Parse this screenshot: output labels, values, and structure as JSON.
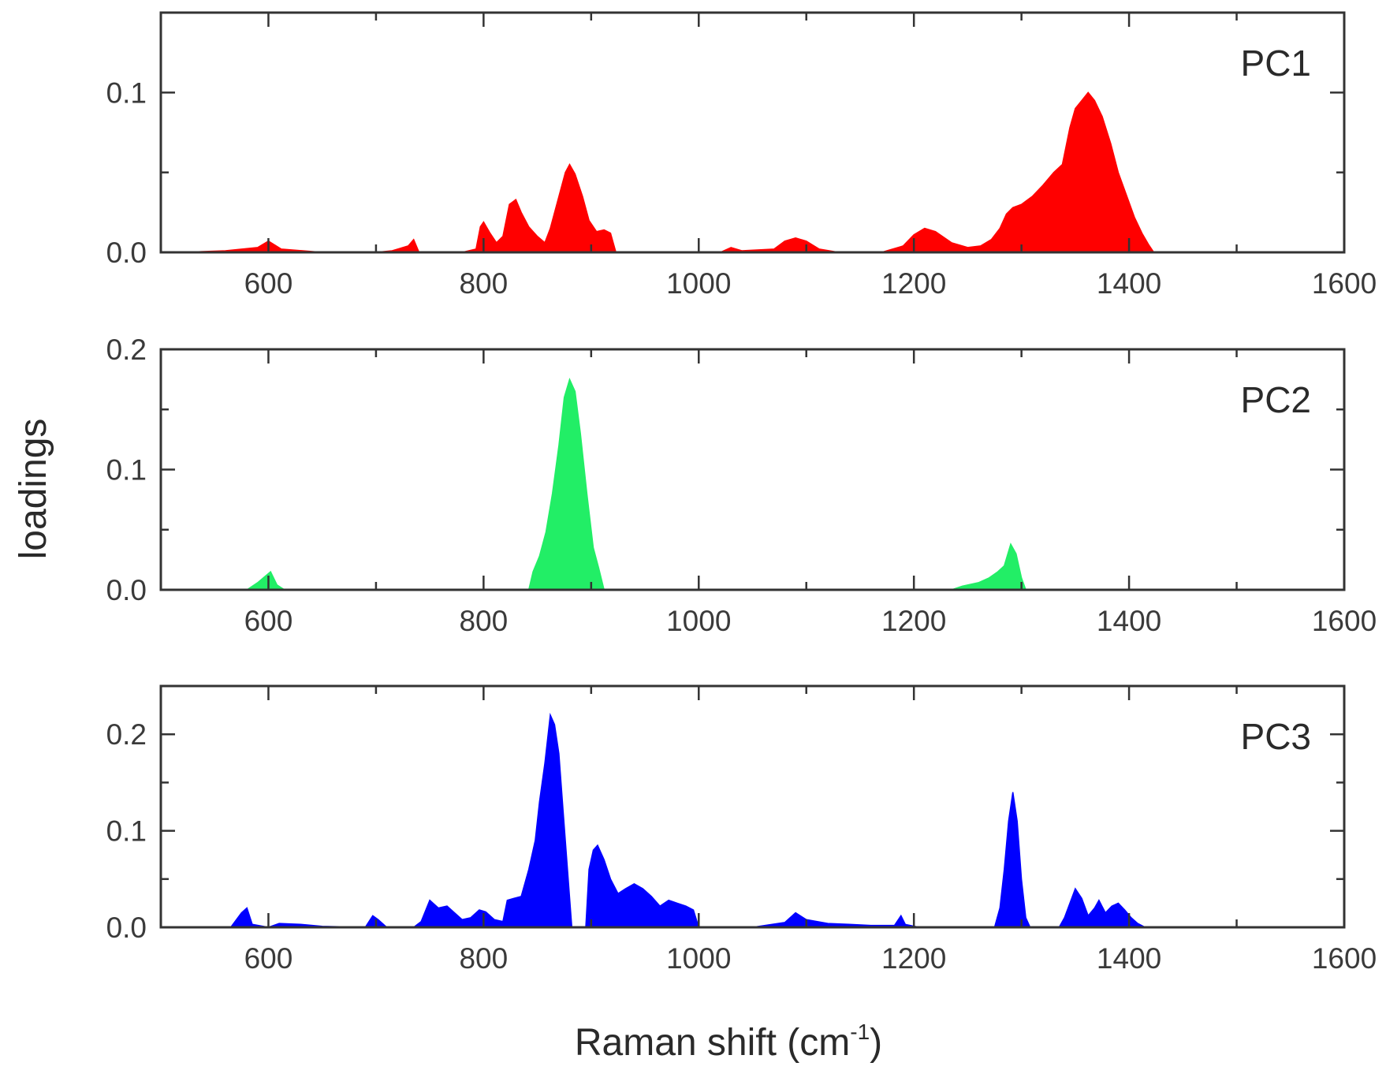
{
  "figure": {
    "ylabel": "loadings",
    "xlabel_main": "Raman shift (cm",
    "xlabel_sup": "-1",
    "xlabel_close": ")"
  },
  "chart_data": [
    {
      "type": "area",
      "panel_label": "PC1",
      "color": "#ff0000",
      "xlim": [
        500,
        1600
      ],
      "ylim": [
        0,
        0.15
      ],
      "x_ticks": [
        600,
        800,
        1000,
        1200,
        1400,
        1600
      ],
      "x_tick_labels": [
        "600",
        "800",
        "1000",
        "1200",
        "1400",
        "1600"
      ],
      "y_ticks": [
        0.0,
        0.1
      ],
      "y_tick_labels": [
        "0.0",
        "0.1"
      ],
      "grid": false,
      "points": [
        [
          520,
          0.0
        ],
        [
          560,
          0.001
        ],
        [
          590,
          0.003
        ],
        [
          600,
          0.007
        ],
        [
          612,
          0.002
        ],
        [
          650,
          0.0
        ],
        [
          700,
          0.0
        ],
        [
          715,
          0.001
        ],
        [
          730,
          0.004
        ],
        [
          735,
          0.008
        ],
        [
          740,
          0.0
        ],
        [
          780,
          0.0
        ],
        [
          793,
          0.002
        ],
        [
          797,
          0.016
        ],
        [
          800,
          0.019
        ],
        [
          806,
          0.012
        ],
        [
          812,
          0.006
        ],
        [
          818,
          0.01
        ],
        [
          824,
          0.03
        ],
        [
          830,
          0.033
        ],
        [
          835,
          0.025
        ],
        [
          842,
          0.016
        ],
        [
          850,
          0.01
        ],
        [
          857,
          0.006
        ],
        [
          862,
          0.015
        ],
        [
          870,
          0.035
        ],
        [
          876,
          0.05
        ],
        [
          880,
          0.055
        ],
        [
          885,
          0.049
        ],
        [
          892,
          0.035
        ],
        [
          898,
          0.02
        ],
        [
          905,
          0.013
        ],
        [
          912,
          0.014
        ],
        [
          918,
          0.012
        ],
        [
          923,
          0.0
        ],
        [
          960,
          0.0
        ],
        [
          1020,
          0.0
        ],
        [
          1030,
          0.003
        ],
        [
          1040,
          0.001
        ],
        [
          1070,
          0.002
        ],
        [
          1080,
          0.007
        ],
        [
          1090,
          0.009
        ],
        [
          1100,
          0.007
        ],
        [
          1112,
          0.002
        ],
        [
          1130,
          0.0
        ],
        [
          1170,
          0.0
        ],
        [
          1190,
          0.004
        ],
        [
          1200,
          0.011
        ],
        [
          1210,
          0.015
        ],
        [
          1220,
          0.013
        ],
        [
          1235,
          0.006
        ],
        [
          1250,
          0.003
        ],
        [
          1262,
          0.004
        ],
        [
          1272,
          0.008
        ],
        [
          1280,
          0.015
        ],
        [
          1286,
          0.024
        ],
        [
          1292,
          0.028
        ],
        [
          1300,
          0.03
        ],
        [
          1310,
          0.035
        ],
        [
          1320,
          0.042
        ],
        [
          1330,
          0.05
        ],
        [
          1338,
          0.055
        ],
        [
          1345,
          0.078
        ],
        [
          1350,
          0.09
        ],
        [
          1356,
          0.095
        ],
        [
          1362,
          0.1
        ],
        [
          1368,
          0.095
        ],
        [
          1375,
          0.085
        ],
        [
          1383,
          0.068
        ],
        [
          1390,
          0.05
        ],
        [
          1398,
          0.035
        ],
        [
          1405,
          0.022
        ],
        [
          1412,
          0.012
        ],
        [
          1418,
          0.005
        ],
        [
          1423,
          0.0
        ],
        [
          1500,
          0.0
        ],
        [
          1560,
          0.0
        ]
      ]
    },
    {
      "type": "area",
      "panel_label": "PC2",
      "color": "#22ee66",
      "xlim": [
        500,
        1600
      ],
      "ylim": [
        0,
        0.2
      ],
      "x_ticks": [
        600,
        800,
        1000,
        1200,
        1400,
        1600
      ],
      "x_tick_labels": [
        "600",
        "800",
        "1000",
        "1200",
        "1400",
        "1600"
      ],
      "y_ticks": [
        0.0,
        0.1,
        0.2
      ],
      "y_tick_labels": [
        "0.0",
        "0.1",
        "0.2"
      ],
      "grid": false,
      "points": [
        [
          520,
          0.0
        ],
        [
          580,
          0.0
        ],
        [
          590,
          0.006
        ],
        [
          598,
          0.012
        ],
        [
          602,
          0.015
        ],
        [
          608,
          0.004
        ],
        [
          615,
          0.0
        ],
        [
          700,
          0.0
        ],
        [
          842,
          0.0
        ],
        [
          846,
          0.015
        ],
        [
          852,
          0.028
        ],
        [
          858,
          0.048
        ],
        [
          864,
          0.08
        ],
        [
          870,
          0.12
        ],
        [
          875,
          0.16
        ],
        [
          880,
          0.175
        ],
        [
          885,
          0.165
        ],
        [
          890,
          0.13
        ],
        [
          896,
          0.08
        ],
        [
          902,
          0.035
        ],
        [
          907,
          0.018
        ],
        [
          912,
          0.0
        ],
        [
          1000,
          0.0
        ],
        [
          1235,
          0.0
        ],
        [
          1245,
          0.003
        ],
        [
          1260,
          0.006
        ],
        [
          1270,
          0.01
        ],
        [
          1278,
          0.015
        ],
        [
          1284,
          0.02
        ],
        [
          1290,
          0.038
        ],
        [
          1295,
          0.03
        ],
        [
          1300,
          0.01
        ],
        [
          1304,
          0.0
        ],
        [
          1400,
          0.0
        ],
        [
          1560,
          0.0
        ]
      ]
    },
    {
      "type": "area",
      "panel_label": "PC3",
      "color": "#0000ff",
      "xlim": [
        500,
        1600
      ],
      "ylim": [
        0,
        0.25
      ],
      "x_ticks": [
        600,
        800,
        1000,
        1200,
        1400,
        1600
      ],
      "x_tick_labels": [
        "600",
        "800",
        "1000",
        "1200",
        "1400",
        "1600"
      ],
      "y_ticks": [
        0.0,
        0.1,
        0.2
      ],
      "y_tick_labels": [
        "0.0",
        "0.1",
        "0.2"
      ],
      "grid": false,
      "points": [
        [
          520,
          0.0
        ],
        [
          565,
          0.0
        ],
        [
          575,
          0.015
        ],
        [
          580,
          0.02
        ],
        [
          585,
          0.003
        ],
        [
          600,
          0.0
        ],
        [
          610,
          0.004
        ],
        [
          630,
          0.003
        ],
        [
          650,
          0.001
        ],
        [
          690,
          0.0
        ],
        [
          697,
          0.012
        ],
        [
          702,
          0.008
        ],
        [
          710,
          0.0
        ],
        [
          735,
          0.0
        ],
        [
          742,
          0.006
        ],
        [
          750,
          0.028
        ],
        [
          758,
          0.02
        ],
        [
          766,
          0.022
        ],
        [
          772,
          0.016
        ],
        [
          780,
          0.008
        ],
        [
          788,
          0.01
        ],
        [
          796,
          0.018
        ],
        [
          802,
          0.016
        ],
        [
          810,
          0.008
        ],
        [
          818,
          0.006
        ],
        [
          822,
          0.028
        ],
        [
          828,
          0.03
        ],
        [
          835,
          0.032
        ],
        [
          842,
          0.06
        ],
        [
          848,
          0.09
        ],
        [
          852,
          0.13
        ],
        [
          857,
          0.17
        ],
        [
          862,
          0.22
        ],
        [
          866,
          0.21
        ],
        [
          870,
          0.18
        ],
        [
          874,
          0.12
        ],
        [
          878,
          0.06
        ],
        [
          882,
          0.0
        ],
        [
          895,
          0.0
        ],
        [
          898,
          0.06
        ],
        [
          902,
          0.08
        ],
        [
          906,
          0.085
        ],
        [
          912,
          0.07
        ],
        [
          918,
          0.05
        ],
        [
          925,
          0.035
        ],
        [
          932,
          0.04
        ],
        [
          940,
          0.045
        ],
        [
          948,
          0.04
        ],
        [
          956,
          0.032
        ],
        [
          964,
          0.022
        ],
        [
          972,
          0.028
        ],
        [
          980,
          0.025
        ],
        [
          988,
          0.022
        ],
        [
          995,
          0.018
        ],
        [
          1000,
          0.0
        ],
        [
          1050,
          0.0
        ],
        [
          1080,
          0.005
        ],
        [
          1090,
          0.015
        ],
        [
          1100,
          0.008
        ],
        [
          1120,
          0.004
        ],
        [
          1140,
          0.003
        ],
        [
          1160,
          0.002
        ],
        [
          1182,
          0.002
        ],
        [
          1188,
          0.012
        ],
        [
          1192,
          0.003
        ],
        [
          1205,
          0.0
        ],
        [
          1275,
          0.0
        ],
        [
          1280,
          0.02
        ],
        [
          1284,
          0.06
        ],
        [
          1288,
          0.11
        ],
        [
          1292,
          0.14
        ],
        [
          1296,
          0.11
        ],
        [
          1300,
          0.05
        ],
        [
          1304,
          0.01
        ],
        [
          1308,
          0.0
        ],
        [
          1335,
          0.0
        ],
        [
          1340,
          0.01
        ],
        [
          1350,
          0.04
        ],
        [
          1356,
          0.03
        ],
        [
          1362,
          0.012
        ],
        [
          1368,
          0.02
        ],
        [
          1372,
          0.028
        ],
        [
          1378,
          0.015
        ],
        [
          1384,
          0.022
        ],
        [
          1390,
          0.025
        ],
        [
          1396,
          0.018
        ],
        [
          1402,
          0.01
        ],
        [
          1408,
          0.004
        ],
        [
          1415,
          0.0
        ],
        [
          1500,
          0.0
        ],
        [
          1570,
          0.0
        ]
      ]
    }
  ]
}
